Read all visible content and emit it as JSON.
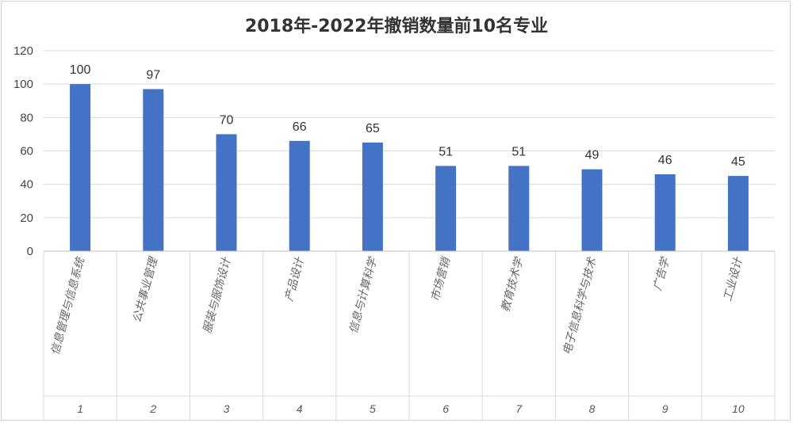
{
  "chart_data": {
    "type": "bar",
    "title": "2018年-2022年撤销数量前10名专业",
    "xlabel": "",
    "ylabel": "",
    "ylim": [
      0,
      120
    ],
    "yticks": [
      0,
      20,
      40,
      60,
      80,
      100,
      120
    ],
    "grid": true,
    "legend": "none",
    "bar_color": "#4472C4",
    "categories": [
      "信息管理与信息系统",
      "公共事业管理",
      "服装与服饰设计",
      "产品设计",
      "信息与计算科学",
      "市场营销",
      "教育技术学",
      "电子信息科学与技术",
      "广告学",
      "工业设计"
    ],
    "ranks": [
      "1",
      "2",
      "3",
      "4",
      "5",
      "6",
      "7",
      "8",
      "9",
      "10"
    ],
    "values": [
      100,
      97,
      70,
      66,
      65,
      51,
      51,
      49,
      46,
      45
    ]
  }
}
